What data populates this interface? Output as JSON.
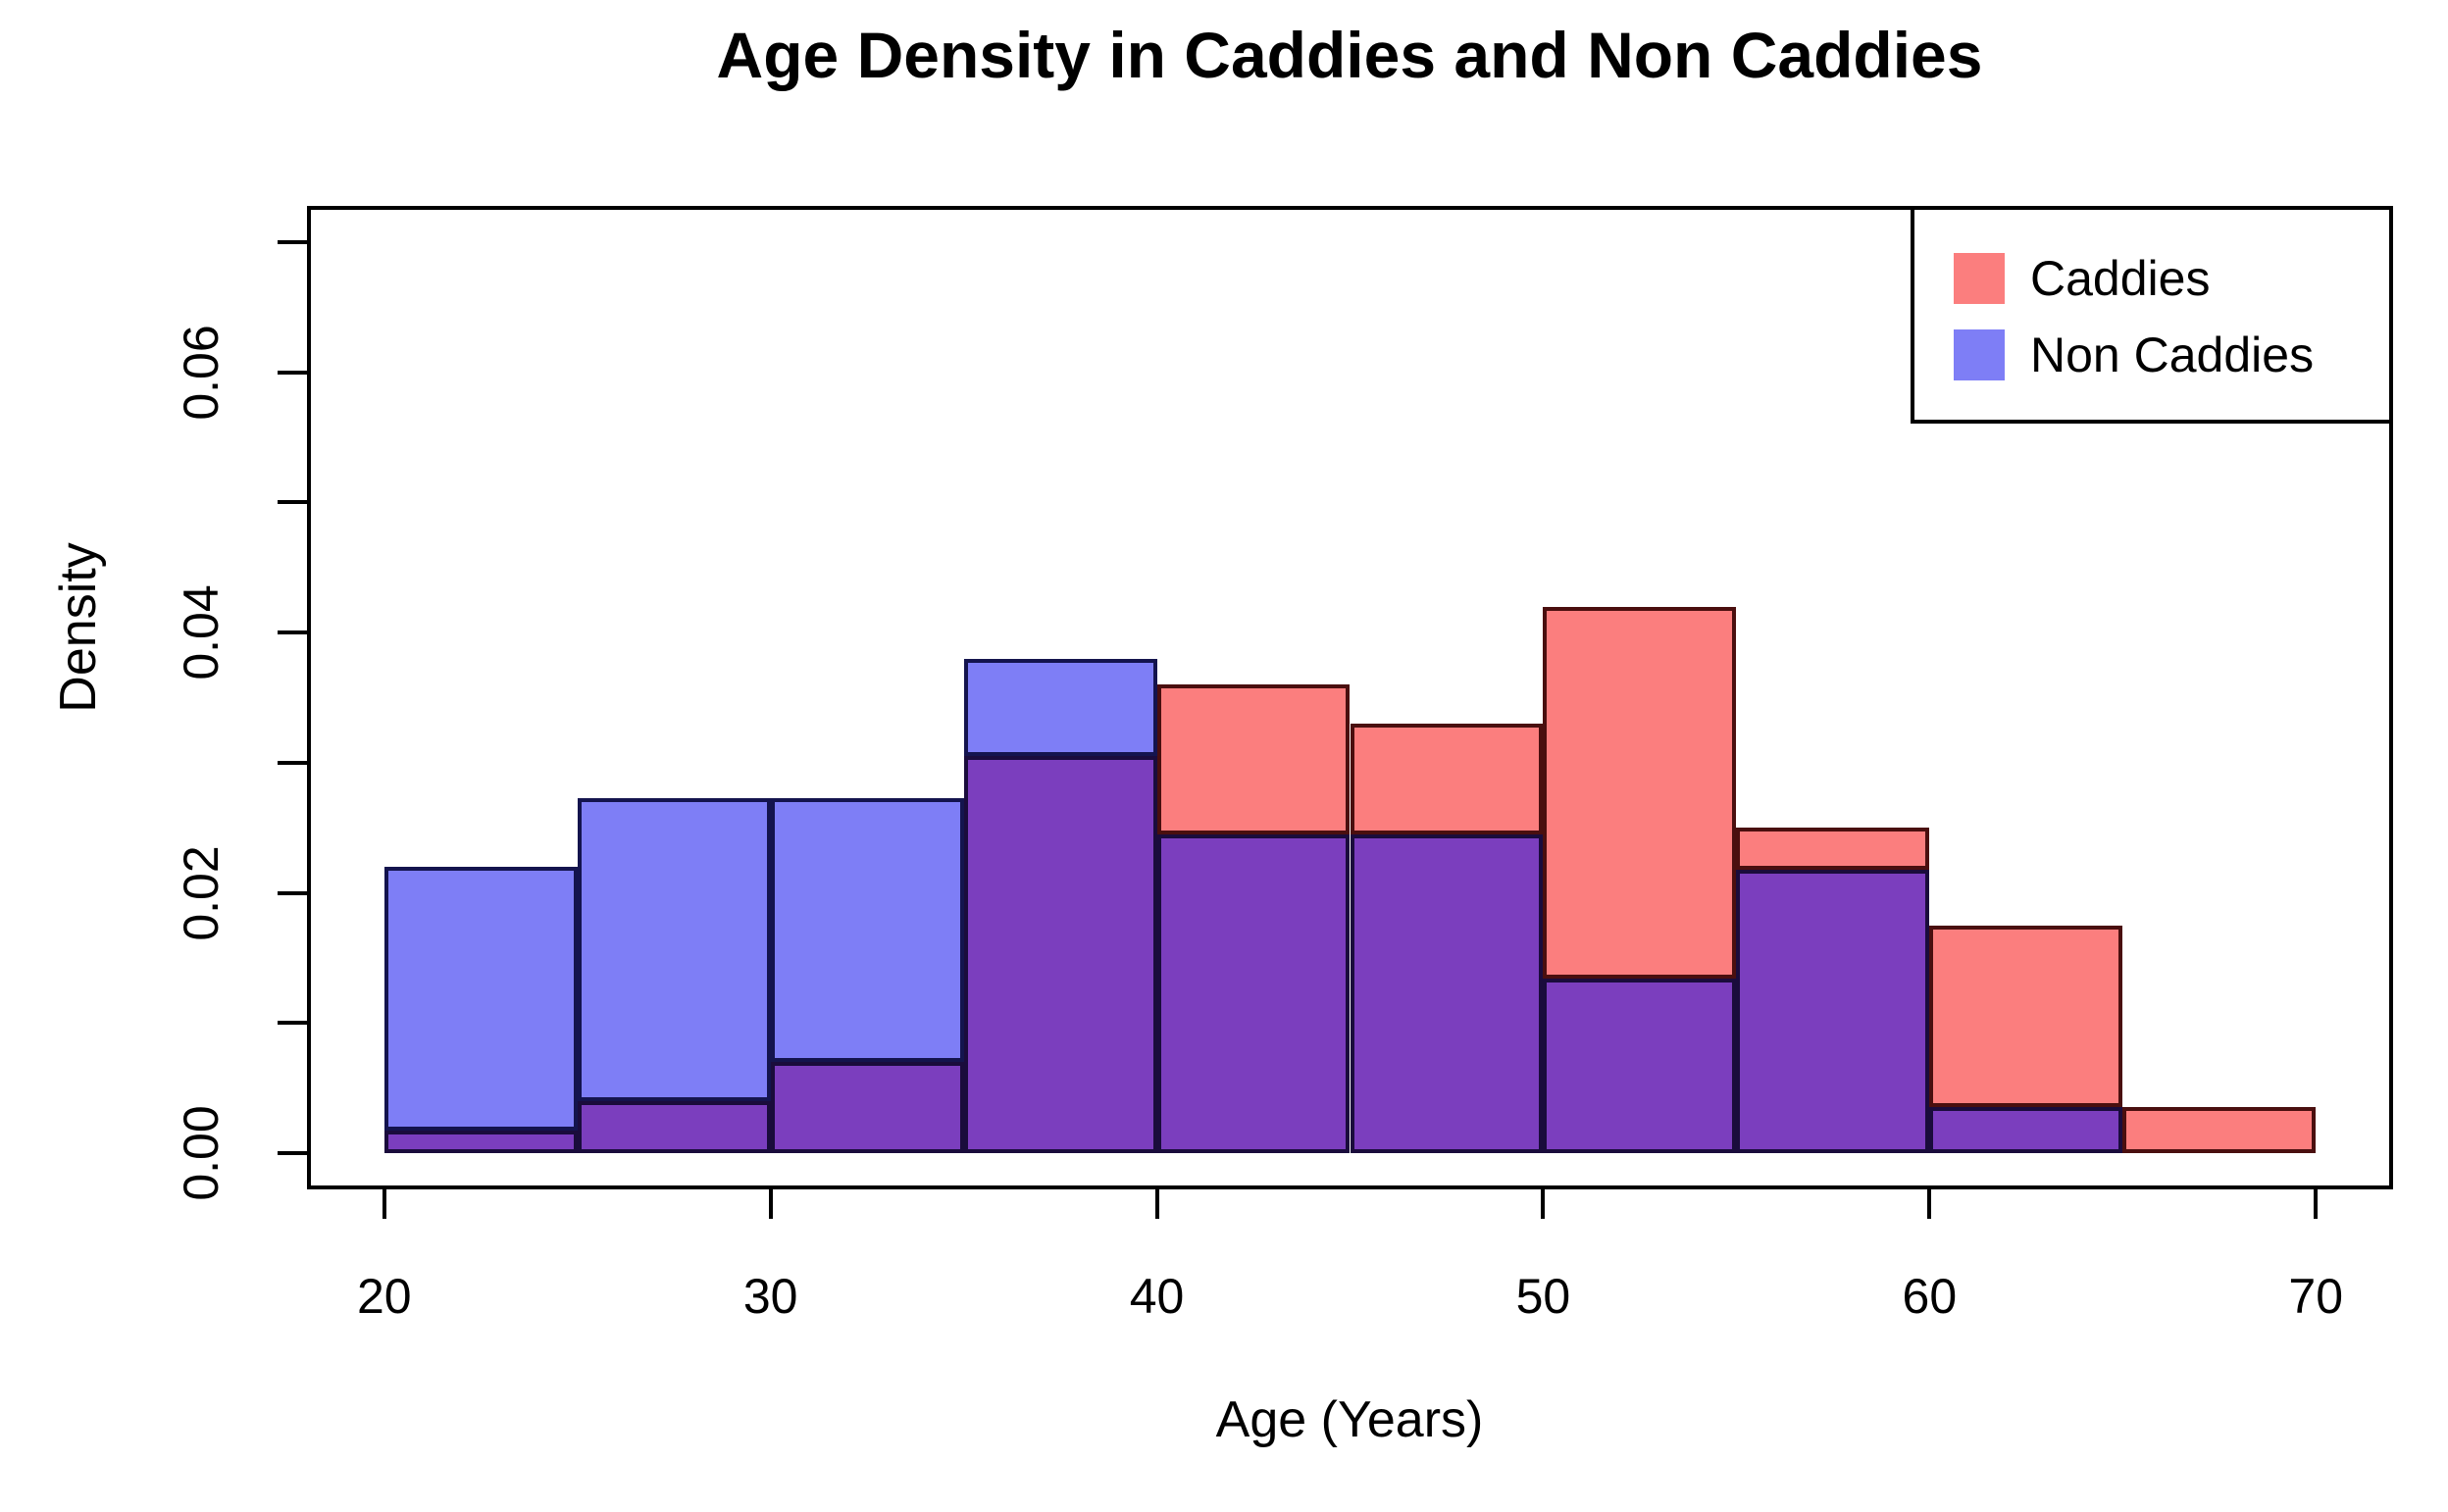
{
  "page": {
    "background": "#FFFFFF"
  },
  "chart_data": {
    "type": "histogram",
    "title": "Age Density in Caddies and Non Caddies",
    "xlabel": "Age (Years)",
    "ylabel": "Density",
    "bin_width": 5,
    "bin_edges": [
      20,
      25,
      30,
      35,
      40,
      45,
      50,
      55,
      60,
      65,
      70
    ],
    "categories": [
      "20-25",
      "25-30",
      "30-35",
      "35-40",
      "40-45",
      "45-50",
      "50-55",
      "55-60",
      "60-65",
      "65-70"
    ],
    "series": [
      {
        "name": "Caddies",
        "fill": "#FB7E7E",
        "border": "#4A0F0F",
        "values": [
          0.0017,
          0.004,
          0.007,
          0.0305,
          0.036,
          0.033,
          0.042,
          0.025,
          0.0175,
          0.0035
        ]
      },
      {
        "name": "Non Caddies",
        "fill": "#7E7EF6",
        "border": "#14144E",
        "values": [
          0.022,
          0.0273,
          0.0273,
          0.038,
          0.0245,
          0.0245,
          0.0134,
          0.0218,
          0.0035,
          0
        ]
      }
    ],
    "overlap_fill": "#7B3EBE",
    "overlap_border": "#1A0C3C",
    "axis_color": "#000000",
    "grid": false,
    "xlim": [
      18,
      72
    ],
    "ylim": [
      -0.0028,
      0.0728
    ],
    "x_ticks": [
      20,
      30,
      40,
      50,
      60,
      70
    ],
    "x_tick_labels": [
      "20",
      "30",
      "40",
      "50",
      "60",
      "70"
    ],
    "y_ticks": [
      0,
      0.01,
      0.02,
      0.03,
      0.04,
      0.05,
      0.06,
      0.07
    ],
    "y_labeled_ticks": [
      {
        "value": 0.0,
        "label": "0.00"
      },
      {
        "value": 0.02,
        "label": "0.02"
      },
      {
        "value": 0.04,
        "label": "0.04"
      },
      {
        "value": 0.06,
        "label": "0.06"
      }
    ],
    "legend": {
      "position": "top-right",
      "entries": [
        {
          "label": "Caddies",
          "color": "#FB7E7E"
        },
        {
          "label": "Non Caddies",
          "color": "#7E7EF6"
        }
      ]
    }
  }
}
